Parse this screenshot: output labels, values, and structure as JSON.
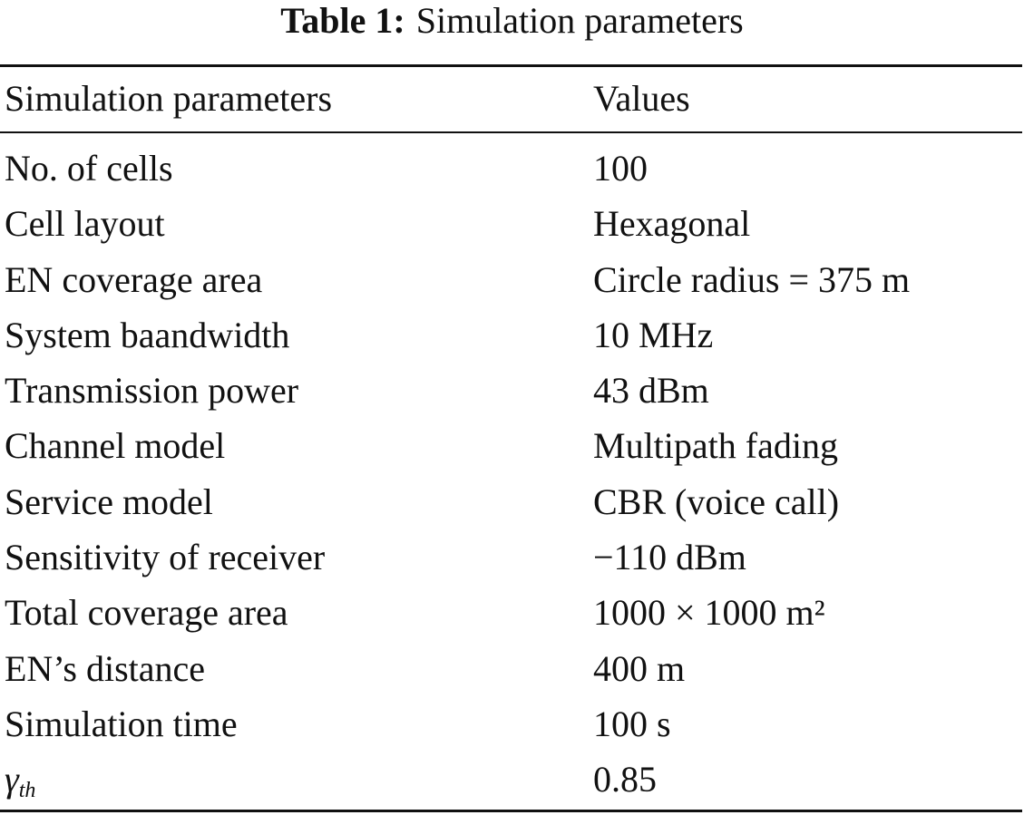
{
  "caption": {
    "label": "Table 1:",
    "title": "Simulation parameters"
  },
  "table": {
    "headers": [
      "Simulation parameters",
      "Values"
    ],
    "rows": [
      {
        "parameter": "No. of cells",
        "value": "100"
      },
      {
        "parameter": "Cell layout",
        "value": "Hexagonal"
      },
      {
        "parameter": "EN coverage area",
        "value": "Circle radius = 375 m"
      },
      {
        "parameter": "System baandwidth",
        "value": "10 MHz"
      },
      {
        "parameter": "Transmission power",
        "value": "43 dBm"
      },
      {
        "parameter": "Channel model",
        "value": "Multipath fading"
      },
      {
        "parameter": "Service model",
        "value": "CBR (voice call)"
      },
      {
        "parameter": "Sensitivity of receiver",
        "value": "−110 dBm"
      },
      {
        "parameter": "Total coverage area",
        "value": "1000 × 1000 m²"
      },
      {
        "parameter": "EN’s distance",
        "value": "400 m"
      },
      {
        "parameter": "Simulation time",
        "value": "100 s"
      },
      {
        "parameter_symbol": "γ",
        "parameter_subscript": "th",
        "value": "0.85"
      }
    ]
  }
}
